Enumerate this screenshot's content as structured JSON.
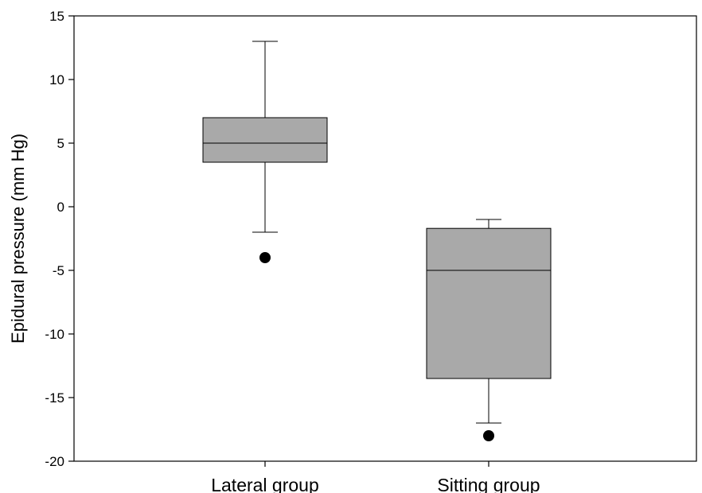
{
  "chart_data": {
    "type": "box",
    "title": "",
    "xlabel": "",
    "ylabel": "Epidural pressure (mm Hg)",
    "ylim": [
      -20,
      15
    ],
    "yticks": [
      15,
      10,
      5,
      0,
      -5,
      -10,
      -15,
      -20
    ],
    "ytick_labels": [
      "15",
      "10",
      "5",
      "0",
      "-5",
      "-10",
      "-15",
      "-20"
    ],
    "grid": false,
    "box_color": "#a9a9a9",
    "categories": [
      "Lateral group",
      "Sitting group"
    ],
    "boxes": [
      {
        "whisker_low": -2,
        "q1": 3.5,
        "median": 5,
        "q3": 7,
        "whisker_high": 13,
        "outliers": [
          -4
        ]
      },
      {
        "whisker_low": -17,
        "q1": -13.5,
        "median": -5,
        "q3": -1.7,
        "whisker_high": -1,
        "outliers": [
          -18
        ]
      }
    ]
  }
}
